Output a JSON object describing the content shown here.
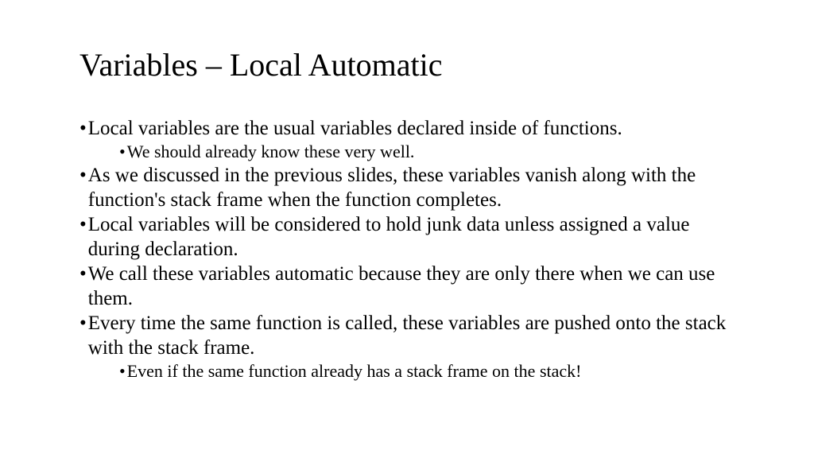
{
  "title": "Variables – Local Automatic",
  "bullets": {
    "b1": "Local variables are the usual variables declared inside of functions.",
    "b1a": "We should already know these very well.",
    "b2": "As we discussed in the previous slides, these variables vanish along with the function's stack frame when the function completes.",
    "b3": "Local variables will be considered to hold junk data unless assigned a value during declaration.",
    "b4": "We call these variables automatic because they are only there when we can use them.",
    "b5": "Every time the same function is called, these variables are pushed onto the stack with the stack frame.",
    "b5a": "Even if the same function already has a stack frame on the stack!"
  },
  "style": {
    "background_color": "#ffffff",
    "text_color": "#000000",
    "title_fontsize": 40,
    "body_fontsize": 25,
    "sub_body_fontsize": 22,
    "font_family": "Times New Roman",
    "bullet_marker": "•",
    "slide_width": 1024,
    "slide_height": 576
  }
}
